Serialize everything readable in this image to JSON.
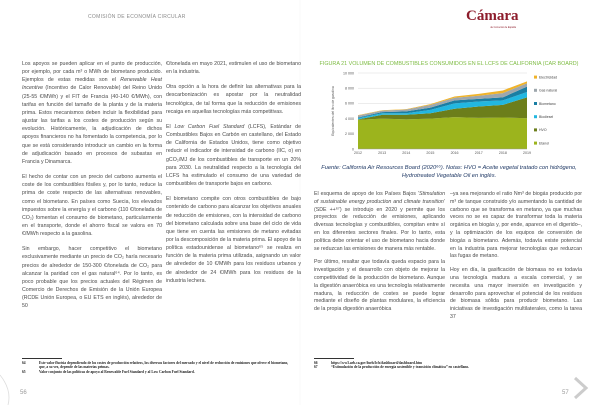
{
  "header": {
    "section": "COMISIÓN DE ECONOMÍA CIRCULAR",
    "logo_text": "Cámara",
    "logo_subtitle": "de Comercio de España"
  },
  "left_page": {
    "col1": [
      [
        "Los apoyos se pueden aplicar en el punto de producción, por ejemplo, por cada m³ o MWh de biometano producido. Ejemplos de estas medidas son el ",
        {
          "i": "Renewable Heat Incentive"
        },
        " (Incentivo de Calor Renovable) del Reino Unido (25-55 €/MWh) y el FIT de Francia (40-140 €/MWh), con tarifas en función del tamaño de la planta y de la materia prima. Estos mecanismos deben incluir la flexibilidad para ajustar las tarifas a los costes de producción según su evolución. Históricamente, la adjudicación de dichos apoyos financieros no ha fomentado la competencia, por lo que se está considerando introducir un cambio en la forma de adjudicación basado en procesos de subastas en Francia y Dinamarca."
      ],
      [
        "El hecho de contar con un precio del carbono aumenta el coste de los combustibles fósiles y, por lo tanto, reduce la prima de coste respecto de las alternativas renovables, como el biometano. En países como Suecia, los elevados impuestos sobre la energía y el carbono (110 €/tonelada de CO₂) fomentan el consumo de biometano, particularmente en el transporte, donde el ahorro fiscal se valora en 70 €/MWh respecto a la gasolina."
      ],
      [
        "Sin embargo, hacer competitivo el biometano exclusivamente mediante un precio de CO₂ haría necesario precios de alrededor de 150-300 €/tonelada de CO₂ para alcanzar la paridad con el gas natural⁶⁴. Por lo tanto, es poco probable que los precios actuales del Régimen de Comercio de Derechos de Emisión de la Unión Europea (RCDE Unión Europea, o EU ETS en inglés), alrededor de 50"
      ]
    ],
    "col2": [
      [
        "€/tonelada en mayo 2021, estimulen el uso de biometano en la industria."
      ],
      [
        "Otra opción a la hora de definir las alternativas para la descarbonización es apostar por la neutralidad tecnológica, de tal forma que la reducción de emisiones recaiga en aquellas tecnologías más competitivas."
      ],
      [
        "El ",
        {
          "i": "Low Carbon Fuel Standard"
        },
        " (LCFS), Estándar de Combustibles Bajos en Carbón en castellano, del Estado de California de Estados Unidos, tiene como objetivo reducir el indicador de intensidad de carbono (IIC, o) en gCO₂/MJ de los combustibles de transporte en un 20% para 2030. La neutralidad respecto a la tecnología del LCFS ha estimulado el consumo de una variedad de combustibles de transporte bajos en carbono."
      ],
      [
        "El biometano compite con otros combustibles de bajo contenido de carbono para alcanzar los objetivos anuales de reducción de emisiones, con la intensidad de carbono del biometano calculada sobre una base del ciclo de vida que tiene en cuenta las emisiones de metano evitadas por la descomposición de la materia prima. El apoyo de la política estadounidense al biometano⁶⁵ se realiza en función de la materia prima utilizada, asignando un valor de alrededor de 10 €/MWh para los residuos urbanos y de alrededor de 24 €/MWh para los residuos de la industria lechera."
      ]
    ],
    "footnotes": [
      {
        "num": "64",
        "text": "Este valor fluctúa dependiendo de los costes de producción relativos, los diversos factores del mercado y el nivel de reducción de emisiones que ofrece el biometano, que, a su vez, depende de las materias primas."
      },
      {
        "num": "65",
        "text": "Valor conjunto de las políticas de apoyo al Renewable Fuel Standard y al Low Carbon Fuel Standard."
      }
    ],
    "page_number": "56"
  },
  "right_page": {
    "figure_title": "FIGURA 21 VOLUMEN DE COMBUSTIBLES CONSUMIDOS EN EL LCFS DE CALIFORNIA (CAR BOARD)",
    "figure_source": "Fuente: California Air Resources Board (2020⁶⁶). Notas: HVO = Aceite vegetal tratado con hidrógeno, Hydrotreated Vegetable Oil en inglés.",
    "col1": [
      [
        "El esquema de apoyo de los Países Bajos ‘",
        {
          "i": "Stimulation of sustainable energy production and climate transition"
        },
        "’ (SDE ++⁶⁷) se introdujo en 2020 y permite que los proyectos de reducción de emisiones, aplicando diversas tecnologías y combustibles, compitan entre sí en los diferentes sectores finales. Por lo tanto, esta política debe orientar el uso de biometano hacia donde se reduzcan las emisiones de manera más rentable."
      ],
      [
        "Por último, resaltar que todavía queda espacio para la investigación y el desarrollo con objeto de mejorar la competitividad de la producción de biometano. Aunque la digestión anaeróbica es una tecnología relativamente madura, la reducción de costes se puede lograr mediante el diseño de plantas modulares, la eficiencia de la propia digestión anaeróbica"
      ]
    ],
    "col2": [
      [
        "–ya sea mejorando el ratio Nm³ de biogás producido por m³ de tanque construido y/o aumentando la cantidad de carbono que se transforma en metano, ya que muchas veces no se es capaz de transformar toda la materia orgánica en biogás y, por ende, aparece en el digerido–, y la optimización de los equipos de conversión de biogás a biometano. Además, todavía existe potencial en la industria para mejorar tecnologías que reduzcan las fugas de metano."
      ],
      [
        "Hoy en día, la gasificación de biomasa no es todavía una tecnología madura a escala comercial, y se necesita una mayor inversión en investigación y desarrollo para aprovechar el potencial de los residuos de biomasa sólida para producir biometano. Las iniciativas de investigación multilaterales, como la tarea 37"
      ]
    ],
    "footnotes": [
      {
        "num": "66",
        "text": "https://ww3.arb.ca.gov/fuels/lcfs/dashboard/dashboard.htm"
      },
      {
        "num": "67",
        "text": "“Estimulación de la producción de energía sostenible y transición climática” en castellano."
      }
    ],
    "page_number": "57"
  },
  "chart_data": {
    "type": "area",
    "stacked": true,
    "title": "FIGURA 21 VOLUMEN DE COMBUSTIBLES CONSUMIDOS EN EL LCFS DE CALIFORNIA (CAR BOARD)",
    "ylabel": "Equivalentes del litro de gasolina",
    "xlabel": "",
    "categories": [
      "2012",
      "2013",
      "2014",
      "2015",
      "2016",
      "2017",
      "2018",
      "2019"
    ],
    "ylim": [
      0,
      10000
    ],
    "yticks": [
      "0",
      "2 000",
      "4 000",
      "6 000",
      "8 000",
      "10 000"
    ],
    "grid": true,
    "legend_position": "right",
    "series": [
      {
        "name": "Etanol",
        "color": "#9cb41d",
        "values": [
          3840,
          4000,
          3900,
          4000,
          4200,
          4100,
          4150,
          4050
        ]
      },
      {
        "name": "HVO",
        "color": "#6c7e1b",
        "values": [
          60,
          500,
          600,
          700,
          1100,
          1500,
          1650,
          2750
        ]
      },
      {
        "name": "Biodiesel",
        "color": "#22b7e0",
        "values": [
          150,
          200,
          200,
          450,
          700,
          650,
          600,
          700
        ]
      },
      {
        "name": "Biometano",
        "color": "#1a7ea3",
        "values": [
          100,
          150,
          250,
          300,
          400,
          350,
          400,
          700
        ]
      },
      {
        "name": "Gas natural",
        "color": "#9ea7ad",
        "values": [
          250,
          200,
          250,
          350,
          350,
          400,
          550,
          450
        ]
      },
      {
        "name": "Electricidad",
        "color": "#f0b32a",
        "values": [
          50,
          50,
          50,
          100,
          150,
          250,
          350,
          250
        ]
      }
    ]
  }
}
